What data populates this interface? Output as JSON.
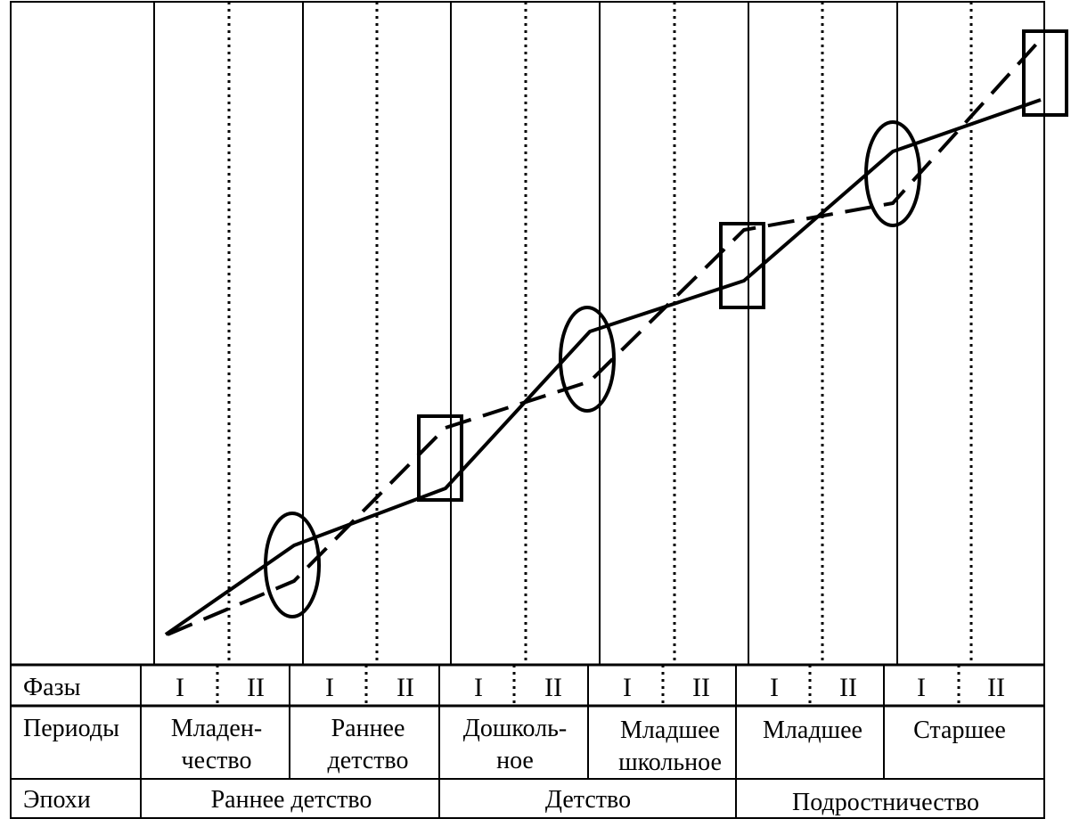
{
  "rows": {
    "phases": "Фазы",
    "periods": "Периоды",
    "epochs": "Эпохи"
  },
  "phase_marks": [
    "I",
    "II",
    "I",
    "II",
    "I",
    "II",
    "I",
    "II",
    "I",
    "II",
    "I",
    "II"
  ],
  "periods": [
    {
      "line1": "Младен-",
      "line2": "чество"
    },
    {
      "line1": "Раннее",
      "line2": "детство"
    },
    {
      "line1": "Дошколь-",
      "line2": "ное"
    },
    {
      "line1": "Младшее",
      "line2": "школьное"
    },
    {
      "line1": "Младшее",
      "line2": ""
    },
    {
      "line1": "Старшее",
      "line2": ""
    }
  ],
  "epochs": [
    "Раннее детство",
    "Детство",
    "Подростничество"
  ],
  "transition_markers": [
    {
      "shape": "ellipse",
      "between": "Младен-чество / Раннее детство"
    },
    {
      "shape": "rectangle",
      "between": "Раннее детство / Дошколь-ное"
    },
    {
      "shape": "ellipse",
      "between": "Дошколь-ное / Младшее школьное"
    },
    {
      "shape": "rectangle",
      "between": "Младшее школьное / Младшее"
    },
    {
      "shape": "ellipse",
      "between": "Младшее / Старшее"
    },
    {
      "shape": "rectangle",
      "between": "Старшее / end"
    }
  ],
  "curves": {
    "solid": "solid",
    "dashed": "dashed"
  },
  "colors": {
    "ink": "#000000",
    "paper": "#ffffff"
  }
}
